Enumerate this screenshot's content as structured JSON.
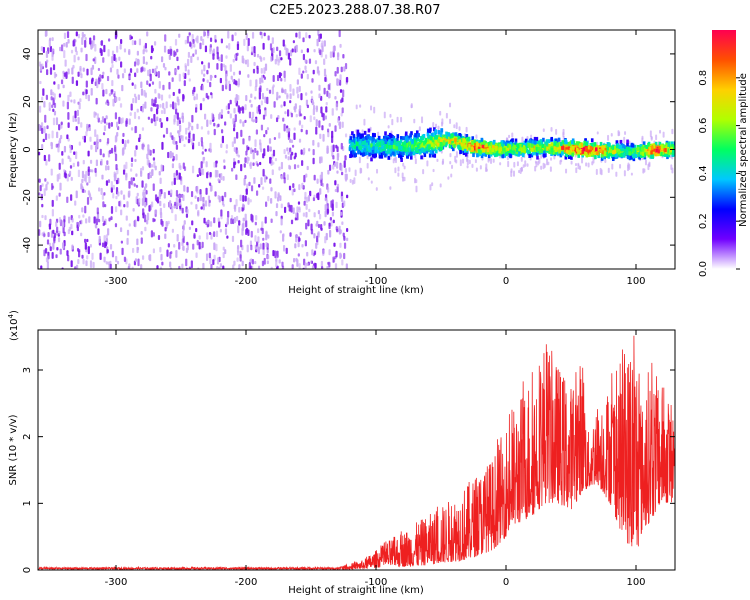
{
  "title": "C2E5.2023.288.07.38.R07",
  "colors": {
    "snr_line": "#ee2020",
    "scatter_fill": "#7a16ea",
    "scatter_halo": "#c9a8f5"
  },
  "colorbar": {
    "label": "Normalized spectral amplitude",
    "ticks": [
      "0.0",
      "0.2",
      "0.4",
      "0.6",
      "0.8"
    ],
    "tick_values": [
      0.0,
      0.2,
      0.4,
      0.6,
      0.8
    ],
    "range": [
      0,
      1
    ],
    "palette": [
      "#ffffff",
      "#7000ff",
      "#0000ff",
      "#00c8ff",
      "#00ff60",
      "#b0ff00",
      "#ffd000",
      "#ff5000",
      "#ff0050"
    ]
  },
  "chart_data": [
    {
      "type": "heatmap",
      "title": "C2E5.2023.288.07.38.R07",
      "xlabel": "Height of straight line (km)",
      "ylabel": "Frequency (Hz)",
      "xlim": [
        -360,
        130
      ],
      "ylim": [
        -50,
        50
      ],
      "xticks": [
        -300,
        -200,
        -100,
        0,
        100
      ],
      "xtick_labels": [
        "-300",
        "-200",
        "-100",
        "0",
        "100"
      ],
      "yticks": [
        -40,
        -20,
        0,
        20,
        40
      ],
      "ytick_labels": [
        "-40",
        "-20",
        "0",
        "20",
        "40"
      ],
      "noise_region_x": [
        -360,
        -123
      ],
      "signal_band": [
        {
          "x": -120,
          "freq": 2,
          "amplitude": 0.35
        },
        {
          "x": -80,
          "freq": 1,
          "amplitude": 0.4
        },
        {
          "x": -45,
          "freq": 4,
          "amplitude": 0.65
        },
        {
          "x": -25,
          "freq": 1,
          "amplitude": 0.85
        },
        {
          "x": 0,
          "freq": 0,
          "amplitude": 0.55
        },
        {
          "x": 30,
          "freq": 1,
          "amplitude": 0.6
        },
        {
          "x": 60,
          "freq": 0,
          "amplitude": 0.95
        },
        {
          "x": 95,
          "freq": -1,
          "amplitude": 0.4
        },
        {
          "x": 115,
          "freq": 0,
          "amplitude": 0.95
        },
        {
          "x": 130,
          "freq": 0,
          "amplitude": 0.45
        }
      ]
    },
    {
      "type": "line",
      "xlabel": "Height of straight line (km)",
      "ylabel": "SNR (10 * v/v)",
      "scale_label": "(x10",
      "scale_exponent": "4",
      "scale_close": ")",
      "xlim": [
        -360,
        130
      ],
      "ylim": [
        0,
        3.6
      ],
      "xticks": [
        -300,
        -200,
        -100,
        0,
        100
      ],
      "xtick_labels": [
        "-300",
        "-200",
        "-100",
        "0",
        "100"
      ],
      "yticks": [
        0,
        1,
        2,
        3
      ],
      "ytick_labels": [
        "0",
        "1",
        "2",
        "3"
      ],
      "envelope": {
        "x": [
          -360,
          -130,
          -110,
          -90,
          -70,
          -50,
          -30,
          -10,
          0,
          10,
          20,
          30,
          40,
          50,
          60,
          62,
          70,
          80,
          90,
          100,
          105,
          110,
          120,
          130
        ],
        "top": [
          0.04,
          0.04,
          0.15,
          0.45,
          0.7,
          0.95,
          1.3,
          1.7,
          2.2,
          2.6,
          3.0,
          3.5,
          3.1,
          2.8,
          3.3,
          2.0,
          2.5,
          2.8,
          3.2,
          3.6,
          2.5,
          3.1,
          2.8,
          2.5
        ],
        "base": [
          0.0,
          0.0,
          0.02,
          0.05,
          0.05,
          0.1,
          0.15,
          0.3,
          0.5,
          0.7,
          0.8,
          1.0,
          1.0,
          0.9,
          1.2,
          1.2,
          1.3,
          1.0,
          0.5,
          0.2,
          0.6,
          0.7,
          1.0,
          1.0
        ]
      }
    }
  ]
}
